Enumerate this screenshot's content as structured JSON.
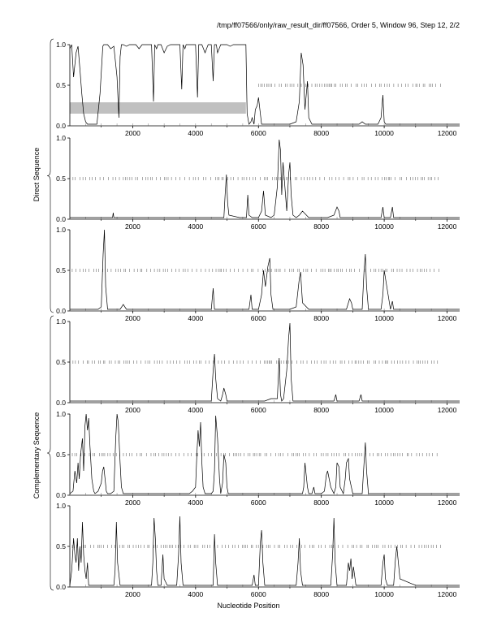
{
  "header": {
    "title": "/tmp/ff07566/only/raw_result_dir/ff07566, Order 5, Window 96, Step 12, 2/2"
  },
  "groups": {
    "direct_label": "Direct Sequence",
    "complementary_label": "Complementary Sequence"
  },
  "x_axis_label": "Nucleotide Position",
  "colors": {
    "line": "#000000",
    "band": "#c0c0c0",
    "axis": "#000000",
    "tick_marks": "#555555"
  },
  "chart_data": [
    {
      "type": "line",
      "group": "Direct Sequence",
      "frame": 1,
      "xlim": [
        0,
        12400
      ],
      "ylim": [
        0,
        1
      ],
      "x_ticks": [
        2000,
        4000,
        6000,
        8000,
        10000,
        12000
      ],
      "y_ticks": [
        0.0,
        0.5,
        1.0
      ],
      "tick_row_range": [
        6000,
        11800
      ],
      "highlight_band": {
        "x": [
          0,
          5600
        ],
        "y": [
          0.15,
          0.29
        ]
      },
      "x": [
        0,
        60,
        120,
        200,
        260,
        320,
        380,
        440,
        500,
        560,
        620,
        680,
        760,
        860,
        960,
        1050,
        1080,
        1120,
        1200,
        1300,
        1400,
        1500,
        1560,
        1600,
        1640,
        1700,
        1800,
        1900,
        2000,
        2100,
        2200,
        2300,
        2400,
        2500,
        2600,
        2660,
        2700,
        2760,
        2800,
        2900,
        3000,
        3100,
        3200,
        3300,
        3400,
        3500,
        3560,
        3600,
        3660,
        3700,
        3800,
        3900,
        4000,
        4060,
        4100,
        4160,
        4200,
        4300,
        4400,
        4500,
        4560,
        4600,
        4660,
        4700,
        4800,
        4900,
        5000,
        5100,
        5200,
        5300,
        5400,
        5500,
        5600,
        5640,
        5700,
        5760,
        5800,
        5860,
        5900,
        5960,
        6000,
        6060,
        6100,
        6200,
        6400,
        6600,
        6800,
        7000,
        7200,
        7300,
        7360,
        7420,
        7480,
        7560,
        7600,
        7700,
        7800,
        8000,
        8400,
        8600,
        8800,
        9000,
        9200,
        9300,
        9400,
        9600,
        9800,
        9900,
        9960,
        10000,
        10050,
        10100,
        10400,
        10800,
        11200,
        11600,
        12000,
        12400
      ],
      "y": [
        0.95,
        1.0,
        0.6,
        0.9,
        0.98,
        0.7,
        0.4,
        0.15,
        0.05,
        0.02,
        0.02,
        0.02,
        0.02,
        0.02,
        0.4,
        0.98,
        1.0,
        1.0,
        1.0,
        0.95,
        0.98,
        0.6,
        0.1,
        0.85,
        1.0,
        1.0,
        0.98,
        1.0,
        1.0,
        1.0,
        0.95,
        1.0,
        1.0,
        1.0,
        1.0,
        0.3,
        1.0,
        0.95,
        1.0,
        1.0,
        0.9,
        0.98,
        1.0,
        1.0,
        1.0,
        1.0,
        0.45,
        1.0,
        0.95,
        1.0,
        1.0,
        1.0,
        1.0,
        0.35,
        1.0,
        1.0,
        1.0,
        0.9,
        1.0,
        1.0,
        0.55,
        1.0,
        1.0,
        0.9,
        1.0,
        1.0,
        1.0,
        0.98,
        1.0,
        1.0,
        1.0,
        1.0,
        1.0,
        0.15,
        0.02,
        0.05,
        0.1,
        0.02,
        0.2,
        0.25,
        0.35,
        0.15,
        0.02,
        0.02,
        0.02,
        0.02,
        0.02,
        0.02,
        0.05,
        0.3,
        0.9,
        0.75,
        0.2,
        0.55,
        0.1,
        0.02,
        0.02,
        0.02,
        0.02,
        0.02,
        0.02,
        0.02,
        0.02,
        0.05,
        0.02,
        0.02,
        0.02,
        0.1,
        0.38,
        0.05,
        0.02,
        0.02,
        0.02,
        0.02,
        0.02,
        0.02,
        0.02,
        0.02
      ]
    },
    {
      "type": "line",
      "group": "Direct Sequence",
      "frame": 2,
      "xlim": [
        0,
        12400
      ],
      "ylim": [
        0,
        1
      ],
      "x_ticks": [
        2000,
        4000,
        6000,
        8000,
        10000,
        12000
      ],
      "y_ticks": [
        0.0,
        0.5,
        1.0
      ],
      "tick_row_range": [
        100,
        11800
      ],
      "x": [
        0,
        1000,
        1360,
        1380,
        1400,
        2000,
        3000,
        4000,
        4900,
        4940,
        4980,
        5020,
        5060,
        5400,
        5620,
        5660,
        5700,
        5800,
        6000,
        6100,
        6160,
        6220,
        6400,
        6500,
        6600,
        6660,
        6700,
        6740,
        6780,
        6900,
        6960,
        7000,
        7040,
        7100,
        7200,
        7300,
        7400,
        7600,
        8000,
        8200,
        8400,
        8500,
        8560,
        8600,
        9000,
        9500,
        9900,
        9960,
        10000,
        10200,
        10260,
        10300,
        10600,
        11000,
        12000,
        12400
      ],
      "y": [
        0.02,
        0.02,
        0.02,
        0.08,
        0.02,
        0.02,
        0.02,
        0.02,
        0.02,
        0.3,
        0.55,
        0.2,
        0.05,
        0.02,
        0.02,
        0.3,
        0.05,
        0.02,
        0.02,
        0.1,
        0.35,
        0.05,
        0.02,
        0.05,
        0.4,
        0.98,
        0.85,
        0.3,
        0.7,
        0.1,
        0.55,
        0.7,
        0.3,
        0.05,
        0.02,
        0.05,
        0.1,
        0.02,
        0.02,
        0.02,
        0.05,
        0.15,
        0.1,
        0.02,
        0.02,
        0.02,
        0.02,
        0.15,
        0.02,
        0.02,
        0.15,
        0.02,
        0.02,
        0.02,
        0.02,
        0.02
      ]
    },
    {
      "type": "line",
      "group": "Direct Sequence",
      "frame": 3,
      "xlim": [
        0,
        12400
      ],
      "ylim": [
        0,
        1
      ],
      "x_ticks": [
        2000,
        4000,
        6000,
        8000,
        10000,
        12000
      ],
      "y_ticks": [
        0.0,
        0.5,
        1.0
      ],
      "tick_row_range": [
        0,
        11800
      ],
      "x": [
        0,
        900,
        1000,
        1060,
        1100,
        1140,
        1200,
        1600,
        1700,
        1800,
        3000,
        4000,
        4500,
        4560,
        4600,
        5000,
        5700,
        5760,
        5800,
        6000,
        6100,
        6160,
        6220,
        6300,
        6360,
        6400,
        6460,
        6600,
        7000,
        7200,
        7300,
        7340,
        7400,
        7600,
        8000,
        8800,
        8900,
        8960,
        9000,
        9300,
        9360,
        9400,
        9440,
        9500,
        9900,
        9960,
        10000,
        10200,
        10260,
        10300,
        11000,
        12000,
        12400
      ],
      "y": [
        0.02,
        0.02,
        0.05,
        0.7,
        1.0,
        0.3,
        0.02,
        0.02,
        0.08,
        0.02,
        0.02,
        0.02,
        0.02,
        0.28,
        0.02,
        0.02,
        0.02,
        0.2,
        0.02,
        0.02,
        0.2,
        0.5,
        0.3,
        0.55,
        0.65,
        0.2,
        0.02,
        0.02,
        0.02,
        0.05,
        0.4,
        0.48,
        0.1,
        0.02,
        0.02,
        0.02,
        0.15,
        0.1,
        0.02,
        0.02,
        0.5,
        0.7,
        0.3,
        0.02,
        0.02,
        0.2,
        0.5,
        0.02,
        0.12,
        0.02,
        0.02,
        0.02,
        0.02
      ]
    },
    {
      "type": "line",
      "group": "Complementary Sequence",
      "frame": 1,
      "xlim": [
        0,
        12400
      ],
      "ylim": [
        0,
        1
      ],
      "x_ticks": [
        2000,
        4000,
        6000,
        8000,
        10000,
        12000
      ],
      "y_ticks": [
        0.0,
        0.5,
        1.0
      ],
      "tick_row_range": [
        100,
        11700
      ],
      "x": [
        0,
        1000,
        4000,
        4500,
        4560,
        4600,
        4640,
        4700,
        4800,
        4860,
        4900,
        4960,
        5000,
        5400,
        5800,
        6000,
        6200,
        6400,
        6600,
        6660,
        6700,
        6740,
        6800,
        6900,
        6960,
        7000,
        7040,
        7100,
        7600,
        8000,
        8400,
        8460,
        8500,
        9000,
        9200,
        9260,
        9300,
        10000,
        11000,
        12000,
        12400
      ],
      "y": [
        0.02,
        0.02,
        0.02,
        0.02,
        0.4,
        0.6,
        0.3,
        0.05,
        0.02,
        0.1,
        0.18,
        0.1,
        0.02,
        0.02,
        0.02,
        0.02,
        0.02,
        0.05,
        0.05,
        0.55,
        0.1,
        0.02,
        0.05,
        0.4,
        0.8,
        0.98,
        0.3,
        0.02,
        0.02,
        0.02,
        0.02,
        0.1,
        0.02,
        0.02,
        0.02,
        0.1,
        0.02,
        0.02,
        0.02,
        0.02,
        0.02
      ]
    },
    {
      "type": "line",
      "group": "Complementary Sequence",
      "frame": 2,
      "xlim": [
        0,
        12400
      ],
      "ylim": [
        0,
        1
      ],
      "x_ticks": [
        2000,
        4000,
        6000,
        8000,
        10000,
        12000
      ],
      "y_ticks": [
        0.0,
        0.5,
        1.0
      ],
      "tick_row_range": [
        0,
        11700
      ],
      "x": [
        0,
        100,
        160,
        220,
        260,
        300,
        340,
        400,
        440,
        480,
        520,
        560,
        600,
        640,
        700,
        760,
        800,
        900,
        1000,
        1040,
        1080,
        1120,
        1160,
        1200,
        1300,
        1400,
        1460,
        1500,
        1540,
        1600,
        1640,
        1700,
        1800,
        2000,
        3000,
        3800,
        3900,
        4000,
        4040,
        4080,
        4120,
        4160,
        4200,
        4240,
        4300,
        4400,
        4500,
        4560,
        4600,
        4640,
        4700,
        4760,
        4800,
        4860,
        4900,
        4960,
        5000,
        5040,
        5100,
        5200,
        5400,
        6000,
        6200,
        7000,
        7400,
        7440,
        7480,
        7560,
        7600,
        7700,
        7760,
        7800,
        7900,
        8000,
        8100,
        8160,
        8200,
        8300,
        8400,
        8460,
        8500,
        8560,
        8600,
        8700,
        8760,
        8800,
        8860,
        8900,
        9000,
        9300,
        9360,
        9400,
        9440,
        9500,
        10000,
        11000,
        12000,
        12400
      ],
      "y": [
        0.02,
        0.05,
        0.3,
        0.15,
        0.4,
        0.2,
        0.5,
        0.7,
        0.3,
        0.85,
        1.0,
        0.8,
        0.95,
        0.6,
        0.2,
        0.05,
        0.02,
        0.05,
        0.15,
        0.3,
        0.35,
        0.2,
        0.05,
        0.02,
        0.02,
        0.05,
        0.7,
        1.0,
        0.9,
        0.4,
        0.1,
        0.02,
        0.02,
        0.02,
        0.02,
        0.02,
        0.05,
        0.1,
        0.5,
        0.8,
        0.6,
        0.9,
        0.4,
        0.1,
        0.02,
        0.02,
        0.02,
        0.05,
        0.3,
        0.98,
        0.7,
        0.2,
        0.02,
        0.15,
        0.5,
        0.4,
        0.1,
        0.02,
        0.02,
        0.02,
        0.02,
        0.02,
        0.02,
        0.02,
        0.02,
        0.1,
        0.4,
        0.1,
        0.02,
        0.02,
        0.1,
        0.02,
        0.02,
        0.02,
        0.05,
        0.25,
        0.3,
        0.1,
        0.02,
        0.1,
        0.4,
        0.35,
        0.1,
        0.02,
        0.2,
        0.4,
        0.45,
        0.2,
        0.02,
        0.02,
        0.4,
        0.65,
        0.3,
        0.02,
        0.02,
        0.02,
        0.02,
        0.02
      ]
    },
    {
      "type": "line",
      "group": "Complementary Sequence",
      "frame": 3,
      "xlim": [
        0,
        12400
      ],
      "ylim": [
        0,
        1
      ],
      "x_ticks": [
        2000,
        4000,
        6000,
        8000,
        10000,
        12000
      ],
      "y_ticks": [
        0.0,
        0.5,
        1.0
      ],
      "tick_row_range": [
        0,
        11800
      ],
      "x": [
        0,
        60,
        120,
        160,
        200,
        240,
        280,
        320,
        360,
        400,
        440,
        480,
        520,
        560,
        600,
        1000,
        1400,
        1440,
        1480,
        1520,
        1600,
        2000,
        2400,
        2600,
        2640,
        2680,
        2720,
        2760,
        2800,
        2900,
        2960,
        3000,
        3100,
        3400,
        3460,
        3500,
        3540,
        3600,
        3800,
        4400,
        4560,
        4600,
        4640,
        4700,
        5000,
        5800,
        5860,
        5900,
        6000,
        6060,
        6100,
        6140,
        6200,
        6600,
        7000,
        7200,
        7260,
        7300,
        7340,
        7400,
        8000,
        8300,
        8360,
        8400,
        8440,
        8500,
        8800,
        8860,
        8900,
        8940,
        8980,
        9020,
        9100,
        9500,
        9900,
        9960,
        10000,
        10040,
        10100,
        10200,
        10300,
        10360,
        10400,
        10500,
        11000,
        12000,
        12400
      ],
      "y": [
        0.02,
        0.2,
        0.6,
        0.4,
        0.3,
        0.6,
        0.2,
        0.5,
        0.3,
        0.8,
        0.4,
        0.2,
        0.1,
        0.3,
        0.02,
        0.02,
        0.02,
        0.2,
        0.8,
        0.3,
        0.02,
        0.02,
        0.02,
        0.02,
        0.3,
        0.85,
        0.6,
        0.2,
        0.02,
        0.02,
        0.4,
        0.1,
        0.02,
        0.02,
        0.4,
        0.87,
        0.3,
        0.02,
        0.02,
        0.02,
        0.02,
        0.65,
        0.3,
        0.02,
        0.02,
        0.02,
        0.15,
        0.02,
        0.02,
        0.55,
        0.7,
        0.3,
        0.02,
        0.02,
        0.02,
        0.02,
        0.3,
        0.6,
        0.2,
        0.02,
        0.02,
        0.02,
        0.4,
        0.85,
        0.3,
        0.02,
        0.02,
        0.3,
        0.2,
        0.35,
        0.1,
        0.25,
        0.02,
        0.02,
        0.02,
        0.3,
        0.4,
        0.1,
        0.02,
        0.02,
        0.02,
        0.35,
        0.5,
        0.1,
        0.02,
        0.02,
        0.02
      ]
    }
  ]
}
